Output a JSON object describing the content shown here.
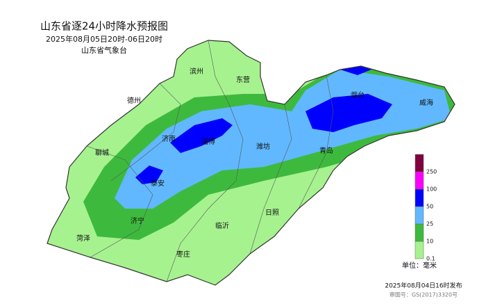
{
  "header": {
    "title": "山东省逐24小时降水预报图",
    "subtitle": "2025年08月05日20时-06日20时",
    "agency": "山东省气象台"
  },
  "cities": [
    "滨州",
    "东营",
    "德州",
    "济南",
    "淄博",
    "潍坊",
    "青岛",
    "烟台",
    "威海",
    "聊城",
    "泰安",
    "济宁",
    "菏泽",
    "临沂",
    "日照",
    "枣庄"
  ],
  "legend": {
    "levels": [
      {
        "value": 0.1,
        "color": "#a6f28f"
      },
      {
        "value": 10,
        "color": "#3dba3d"
      },
      {
        "value": 25,
        "color": "#61b8ff"
      },
      {
        "value": 50,
        "color": "#0000fe"
      },
      {
        "value": 100,
        "color": "#fa00fa"
      },
      {
        "value": 250,
        "color": "#800040"
      }
    ],
    "unit": "单位：毫米"
  },
  "footer": {
    "issued": "2025年08月04日16时发布",
    "review": "审图号：GS(2017)3320号"
  }
}
